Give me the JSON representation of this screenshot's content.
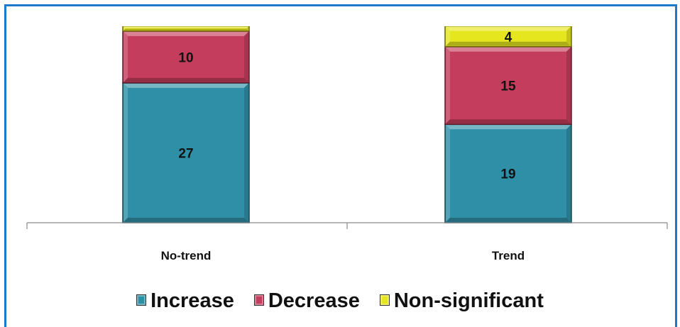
{
  "chart_data": {
    "type": "bar",
    "stacked": true,
    "categories": [
      "No-trend",
      "Trend"
    ],
    "series": [
      {
        "name": "Increase",
        "values": [
          27,
          19
        ],
        "labels": [
          "27",
          "19"
        ],
        "color": "#2e8fa6"
      },
      {
        "name": "Decrease",
        "values": [
          10,
          15
        ],
        "labels": [
          "10",
          "15"
        ],
        "color": "#c43d5c"
      },
      {
        "name": "Non-significant",
        "values": [
          1,
          4
        ],
        "labels": [
          "",
          "4"
        ],
        "color": "#e6e61e"
      }
    ],
    "ylim": [
      0,
      38
    ],
    "grid": false,
    "legend_position": "bottom"
  }
}
